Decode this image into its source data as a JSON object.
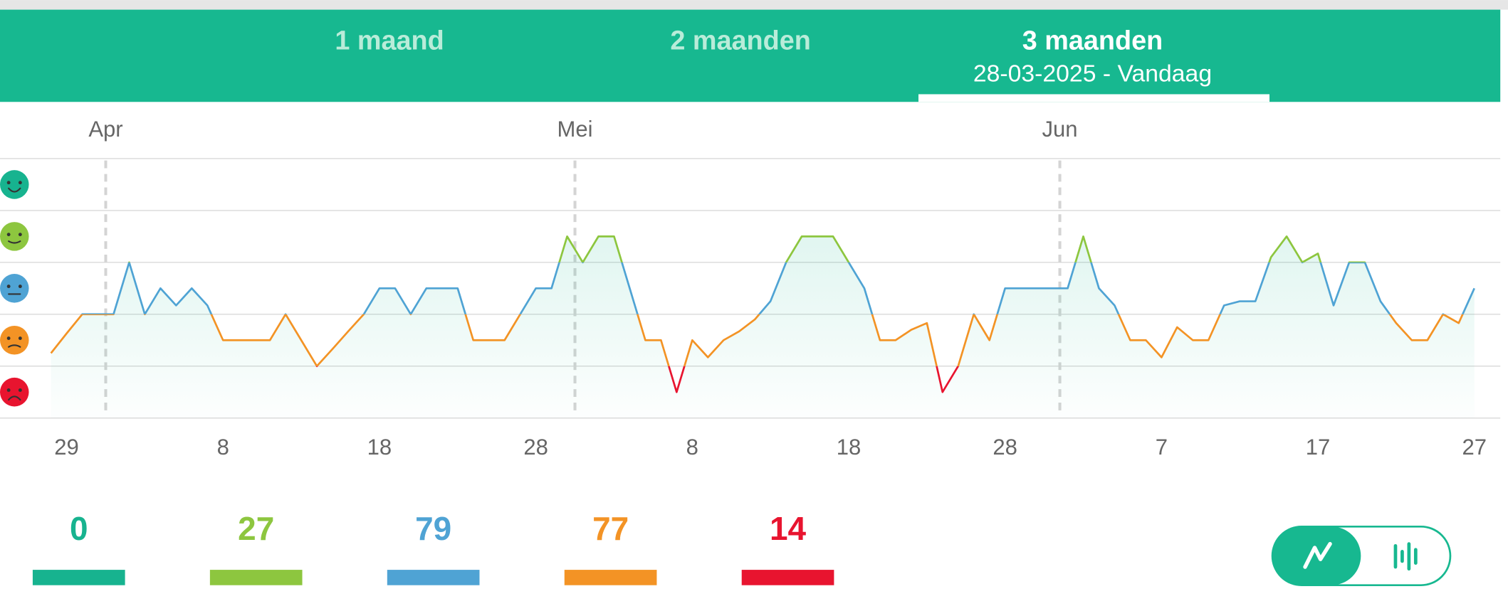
{
  "tabs": [
    {
      "label": "1 maand"
    },
    {
      "label": "2 maanden"
    },
    {
      "label": "3 maanden",
      "subtitle": "28-03-2025 - Vandaag"
    }
  ],
  "chart_data": {
    "type": "line",
    "categories": [
      null,
      "29",
      null,
      null,
      null,
      null,
      null,
      null,
      null,
      null,
      null,
      "8",
      null,
      null,
      null,
      null,
      null,
      null,
      null,
      null,
      null,
      "18",
      null,
      null,
      null,
      null,
      null,
      null,
      null,
      null,
      null,
      "28",
      null,
      null,
      null,
      null,
      null,
      null,
      null,
      null,
      null,
      "8",
      null,
      null,
      null,
      null,
      null,
      null,
      null,
      null,
      null,
      "18",
      null,
      null,
      null,
      null,
      null,
      null,
      null,
      null,
      null,
      "28",
      null,
      null,
      null,
      null,
      null,
      null,
      null,
      null,
      null,
      "7",
      null,
      null,
      null,
      null,
      null,
      null,
      null,
      null,
      null,
      "17",
      null,
      null,
      null,
      null,
      null,
      null,
      null,
      null,
      null,
      "27"
    ],
    "values": [
      1.75,
      2.13,
      2.5,
      2.5,
      2.5,
      3.5,
      2.5,
      3,
      2.67,
      3,
      2.67,
      2,
      2,
      2,
      2,
      2.5,
      2,
      1.5,
      1.83,
      2.17,
      2.5,
      3,
      3,
      2.5,
      3,
      3,
      3,
      2,
      2,
      2,
      2.5,
      3,
      3,
      4,
      3.5,
      4,
      4,
      3,
      2,
      2,
      1,
      2,
      1.67,
      2,
      2.17,
      2.4,
      2.75,
      3.5,
      4,
      4,
      4,
      3.5,
      3,
      2,
      2,
      2.2,
      2.33,
      1,
      1.5,
      2.5,
      2,
      3,
      3,
      3,
      3,
      3,
      4,
      3,
      2.67,
      2,
      2,
      1.67,
      2.25,
      2,
      2,
      2.67,
      2.75,
      2.75,
      3.6,
      4,
      3.5,
      3.67,
      2.67,
      3.5,
      3.5,
      2.75,
      2.33,
      2,
      2,
      2.5,
      2.33,
      3
    ],
    "months": [
      {
        "label": "Apr",
        "index": 4
      },
      {
        "label": "Mei",
        "index": 34
      },
      {
        "label": "Jun",
        "index": 65
      }
    ],
    "ylim": [
      0.5,
      5.5
    ],
    "yticks": [
      1,
      2,
      3,
      4,
      5
    ],
    "level_colors": [
      "#e8142f",
      "#f39325",
      "#4fa3d4",
      "#8dc63f",
      "#17b38f"
    ]
  },
  "summary": [
    {
      "count": 0,
      "color": "#17b38f"
    },
    {
      "count": 27,
      "color": "#8dc63f"
    },
    {
      "count": 79,
      "color": "#4fa3d4"
    },
    {
      "count": 77,
      "color": "#f39325"
    },
    {
      "count": 14,
      "color": "#e8142f"
    }
  ]
}
